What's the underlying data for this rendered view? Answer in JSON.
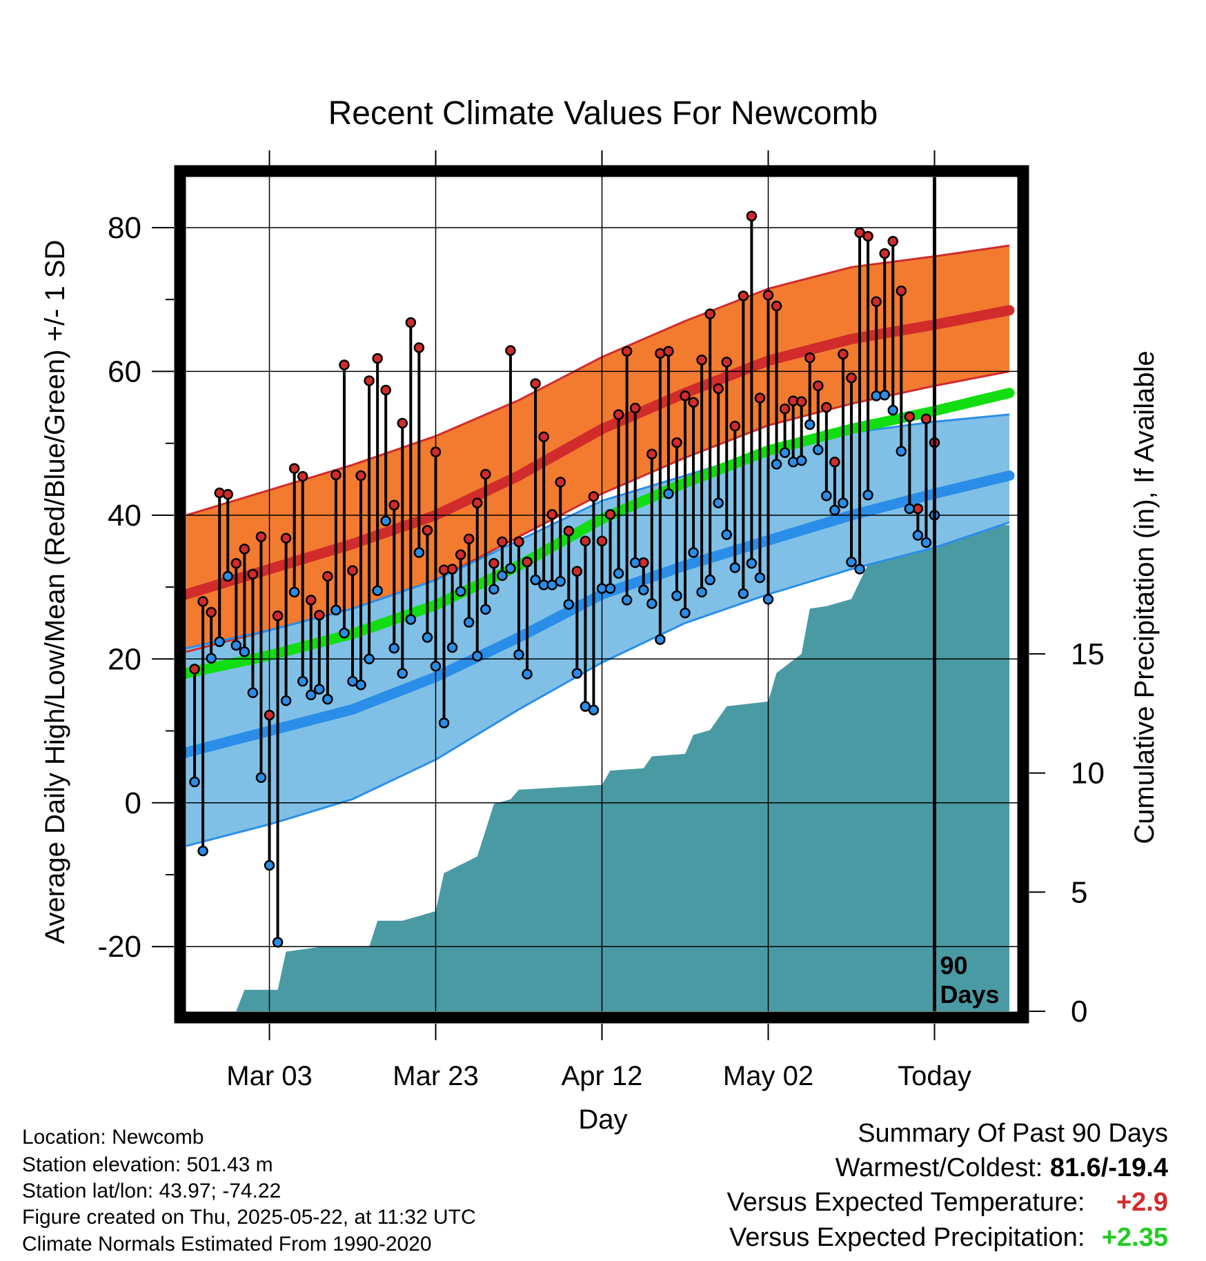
{
  "chart_data": {
    "type": "line",
    "title": "Recent Climate Values For Newcomb",
    "xlabel": "Day",
    "ylabel": "Average Daily High/Low/Mean (Red/Blue/Green) +/- 1 SD",
    "y2label": "Cumulative Precipitation (in), If Available",
    "xlim": [
      -10,
      90
    ],
    "ylim": [
      -29,
      87
    ],
    "y2lim": [
      0,
      35
    ],
    "x_ticks": [
      {
        "x": 0,
        "label": "Mar 03"
      },
      {
        "x": 20,
        "label": "Mar 23"
      },
      {
        "x": 40,
        "label": "Apr 12"
      },
      {
        "x": 60,
        "label": "May 02"
      },
      {
        "x": 80,
        "label": "Today"
      }
    ],
    "y_ticks": [
      -20,
      0,
      20,
      40,
      60,
      80
    ],
    "y2_ticks": [
      0,
      5,
      10,
      15
    ],
    "grid": true,
    "today_marker": {
      "x": 80,
      "label_line1": "90",
      "label_line2": "Days"
    },
    "normals": {
      "x": [
        -10,
        0,
        10,
        20,
        30,
        40,
        50,
        60,
        70,
        80,
        89
      ],
      "high_mean": [
        29,
        32.5,
        36,
        40,
        45.5,
        52,
        57,
        61.5,
        64.5,
        66.5,
        68.5
      ],
      "high_upper": [
        40,
        43.5,
        47,
        51,
        56,
        62,
        67,
        71.5,
        74.5,
        76,
        77.5
      ],
      "high_lower": [
        21,
        24,
        27,
        31,
        37,
        43,
        48,
        52.5,
        55.5,
        58,
        60
      ],
      "mean": [
        18,
        20.5,
        23.5,
        27.5,
        33,
        39.5,
        44.5,
        49,
        52,
        54.5,
        57
      ],
      "low_mean": [
        7,
        10,
        13,
        17.5,
        23,
        29,
        33,
        36.5,
        40,
        43,
        45.5
      ],
      "low_upper": [
        21.5,
        24,
        27,
        31,
        36.5,
        42,
        45.5,
        49,
        51.5,
        53,
        54
      ],
      "low_lower": [
        -6,
        -3,
        0.5,
        6,
        13,
        19.5,
        25,
        29,
        32.5,
        35.5,
        39
      ]
    },
    "series": [
      {
        "name": "High",
        "color": "#d12b2b",
        "values": [
          18.6,
          28,
          26.5,
          43.1,
          42.9,
          33.3,
          35.3,
          31.8,
          37.0,
          12.2,
          26.0,
          36.8,
          46.5,
          45.4,
          28.2,
          26.1,
          31.5,
          45.6,
          60.9,
          32.3,
          45.5,
          58.7,
          61.8,
          57.4,
          41.4,
          52.8,
          66.8,
          63.3,
          37.9,
          48.8,
          32.4,
          32.5,
          34.5,
          36.7,
          41.7,
          45.7,
          33.3,
          36.3,
          62.9,
          36.3,
          33.5,
          58.3,
          50.9,
          40.1,
          44.6,
          37.8,
          32.2,
          36.4,
          42.6,
          36.4,
          40.1,
          54.0,
          62.8,
          54.9,
          33.4,
          48.5,
          62.5,
          62.8,
          50.1,
          56.6,
          55.7,
          61.6,
          68.0,
          57.6,
          61.3,
          52.4,
          70.5,
          81.6,
          56.3,
          70.6,
          69.1,
          54.8,
          55.9,
          55.8,
          61.9,
          58.0,
          55.0,
          47.4,
          62.4,
          59.1,
          79.3,
          78.8,
          69.7,
          76.4,
          78.1,
          71.2,
          53.7,
          40.9,
          53.4,
          50.1
        ]
      },
      {
        "name": "Low",
        "color": "#2a8ee8",
        "values": [
          2.9,
          -6.7,
          20.1,
          22.4,
          31.5,
          21.9,
          21.0,
          15.3,
          3.5,
          -8.7,
          -19.4,
          14.2,
          29.3,
          16.9,
          15.0,
          15.8,
          14.4,
          26.8,
          23.6,
          16.9,
          16.4,
          20.0,
          29.5,
          39.2,
          21.5,
          18.0,
          25.5,
          34.8,
          23.0,
          19.0,
          11.1,
          21.6,
          29.4,
          25.1,
          20.4,
          26.9,
          29.7,
          31.6,
          32.6,
          20.6,
          17.9,
          31.0,
          30.3,
          30.3,
          30.8,
          27.6,
          18.0,
          13.4,
          12.9,
          29.8,
          29.8,
          31.9,
          28.2,
          33.4,
          29.6,
          27.7,
          22.7,
          43.0,
          28.8,
          26.4,
          34.8,
          29.3,
          31.0,
          41.7,
          37.3,
          32.7,
          29.1,
          33.3,
          31.3,
          28.3,
          47.1,
          48.7,
          47.4,
          47.6,
          52.6,
          49.1,
          42.7,
          40.7,
          41.7,
          33.5,
          32.5,
          42.8,
          56.6,
          56.7,
          54.6,
          48.9,
          40.9,
          37.2,
          36.2,
          40.0
        ]
      }
    ],
    "precip": {
      "x": [
        -10,
        -4,
        -3,
        1,
        2,
        6,
        7,
        12,
        13,
        16,
        19,
        20,
        21,
        25,
        27,
        29,
        30,
        40,
        41,
        45,
        46,
        50,
        51,
        53,
        55,
        60,
        61,
        64,
        65,
        67,
        70,
        73,
        77,
        80,
        89
      ],
      "values": [
        0,
        0,
        0.9,
        0.9,
        2.5,
        2.7,
        2.7,
        2.7,
        3.8,
        3.8,
        4.1,
        4.2,
        5.8,
        6.5,
        8.7,
        8.9,
        9.3,
        9.5,
        10.1,
        10.2,
        10.7,
        10.8,
        11.6,
        11.8,
        12.8,
        13.0,
        14.2,
        15.0,
        16.9,
        17.0,
        17.3,
        19.5,
        20.2,
        20.4,
        20.4
      ]
    }
  },
  "station": {
    "location": "Location: Newcomb",
    "elevation": "Station elevation: 501.43 m",
    "latlon": "Station lat/lon: 43.97; -74.22",
    "created": "Figure created on Thu, 2025-05-22, at 11:32 UTC",
    "normals": "Climate Normals Estimated From 1990-2020"
  },
  "summary": {
    "title": "Summary Of Past 90 Days",
    "warm_cold_label": "Warmest/Coldest:",
    "warm_cold_value": "81.6/-19.4",
    "temp_label": "Versus Expected Temperature:",
    "temp_value": "+2.9",
    "temp_color": "#d12b2b",
    "precip_label": "Versus Expected Precipitation:",
    "precip_value": "+2.35",
    "precip_color": "#22cc22"
  },
  "colors": {
    "high_band": "#f27b30",
    "high_line": "#d12b2b",
    "low_band": "#80c0e6",
    "low_line": "#2a8ee8",
    "mean_line": "#11dd11",
    "precip_fill": "#4a9aa4"
  }
}
